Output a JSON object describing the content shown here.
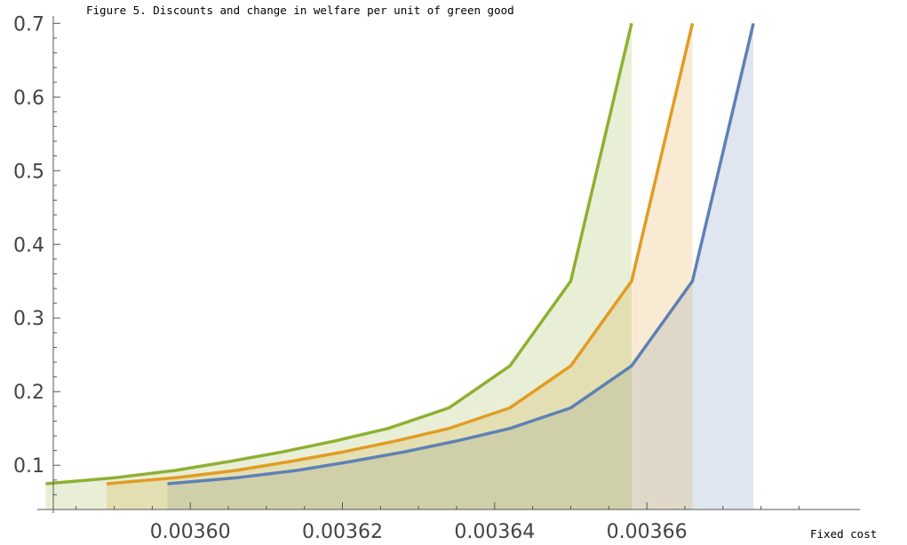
{
  "chart_data": {
    "type": "area",
    "title": "Figure 5.  Discounts and change in welfare per unit of green good",
    "xlabel": "Fixed cost",
    "ylabel": "",
    "xlim": [
      0.003582,
      0.003688
    ],
    "ylim": [
      0.04,
      0.71
    ],
    "x_ticks_major": [
      0.0036,
      0.00362,
      0.00364,
      0.00366
    ],
    "x_tick_labels": [
      "0.00360",
      "0.00362",
      "0.00364",
      "0.00366"
    ],
    "x_ticks_minor": [
      0.003585,
      0.00359,
      0.003595,
      0.003605,
      0.00361,
      0.003615,
      0.003625,
      0.00363,
      0.003635,
      0.003645,
      0.00365,
      0.003655,
      0.003665,
      0.00367,
      0.003675,
      0.00368
    ],
    "y_ticks_major": [
      0.1,
      0.2,
      0.3,
      0.4,
      0.5,
      0.6,
      0.7
    ],
    "y_tick_labels": [
      "0.1",
      "0.2",
      "0.3",
      "0.4",
      "0.5",
      "0.6",
      "0.7"
    ],
    "series": [
      {
        "color": "#5E81B5",
        "fill_opacity": 0.2,
        "x": [
          0.003597,
          0.003606,
          0.003614,
          0.003621,
          0.003628,
          0.003635,
          0.003642,
          0.00365,
          0.003658,
          0.003666,
          0.003674
        ],
        "y": [
          0.075,
          0.083,
          0.093,
          0.105,
          0.118,
          0.133,
          0.15,
          0.178,
          0.235,
          0.35,
          0.7
        ]
      },
      {
        "color": "#E19C24",
        "fill_opacity": 0.2,
        "x": [
          0.003589,
          0.003598,
          0.003606,
          0.003613,
          0.00362,
          0.003627,
          0.003634,
          0.003642,
          0.00365,
          0.003658,
          0.003666
        ],
        "y": [
          0.075,
          0.083,
          0.093,
          0.105,
          0.118,
          0.133,
          0.15,
          0.178,
          0.235,
          0.35,
          0.7
        ]
      },
      {
        "color": "#8FB032",
        "fill_opacity": 0.2,
        "x": [
          0.003581,
          0.00359,
          0.003598,
          0.003605,
          0.003612,
          0.003619,
          0.003626,
          0.003634,
          0.003642,
          0.00365,
          0.003658
        ],
        "y": [
          0.075,
          0.083,
          0.093,
          0.105,
          0.118,
          0.133,
          0.15,
          0.178,
          0.235,
          0.35,
          0.7
        ]
      }
    ]
  }
}
